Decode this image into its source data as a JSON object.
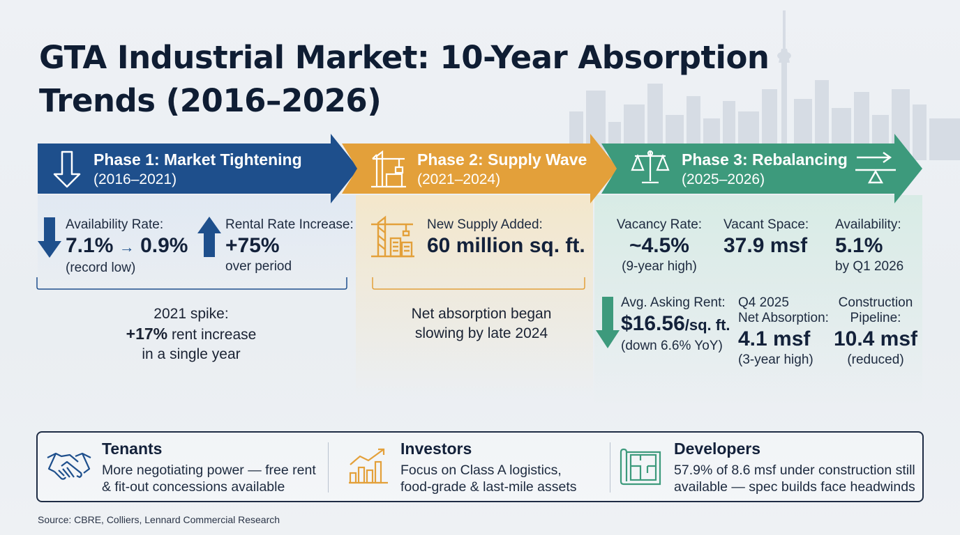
{
  "title": "GTA Industrial Market: 10-Year Absorption Trends (2016–2026)",
  "colors": {
    "phase1": "#1e4f8c",
    "phase2": "#e3a03a",
    "phase3": "#3d9a7c",
    "dark_text": "#13213a",
    "panel_border": "#1e2c44"
  },
  "phases": [
    {
      "title": "Phase 1: Market Tightening",
      "period": "(2016–2021)",
      "icon": "down-arrow-icon",
      "stats": [
        {
          "label": "Availability Rate:",
          "from": "7.1%",
          "to": "0.9%",
          "note": "(record low)",
          "icon": "arrow-down-icon"
        },
        {
          "label": "Rental Rate Increase:",
          "value": "+75%",
          "note": "over period",
          "icon": "arrow-up-icon"
        }
      ],
      "callout": {
        "line1": "2021 spike:",
        "highlight": "+17%",
        "line2_rest": " rent increase",
        "line3": "in a single year"
      }
    },
    {
      "title": "Phase 2: Supply Wave",
      "period": "(2021–2024)",
      "icon": "crane-icon",
      "stats": [
        {
          "label": "New Supply Added:",
          "value": "60 million sq. ft.",
          "icon": "construction-crane-icon"
        }
      ],
      "callout": {
        "line1": "Net absorption began",
        "line2": "slowing by late 2024"
      }
    },
    {
      "title": "Phase 3: Rebalancing",
      "period": "(2025–2026)",
      "icon": "scales-icon",
      "icon_right": "seesaw-icon",
      "stats": [
        {
          "label": "Vacancy Rate:",
          "value": "~4.5%",
          "note": "(9-year high)"
        },
        {
          "label": "Vacant Space:",
          "value": "37.9 msf"
        },
        {
          "label": "Availability:",
          "value": "5.1%",
          "note": "by Q1 2026"
        },
        {
          "label": "Avg. Asking Rent:",
          "value": "$16.56",
          "unit": "/sq. ft.",
          "note": "(down 6.6% YoY)",
          "icon": "arrow-down-icon"
        },
        {
          "label": "Q4 2025",
          "label2": "Net Absorption:",
          "value": "4.1 msf",
          "note": "(3-year high)"
        },
        {
          "label": "Construction",
          "label2": "Pipeline:",
          "value": "10.4 msf",
          "note": "(reduced)"
        }
      ]
    }
  ],
  "stakeholders": [
    {
      "name": "Tenants",
      "icon": "handshake-icon",
      "line1": "More negotiating power — free rent",
      "line2": "& fit-out concessions available"
    },
    {
      "name": "Investors",
      "icon": "growth-chart-icon",
      "line1": "Focus on Class A logistics,",
      "line2": "food-grade & last-mile assets"
    },
    {
      "name": "Developers",
      "icon": "blueprint-icon",
      "line1": "57.9% of 8.6 msf under construction still",
      "line2": "available — spec builds face headwinds"
    }
  ],
  "source": "Source: CBRE, Colliers, Lennard Commercial Research"
}
